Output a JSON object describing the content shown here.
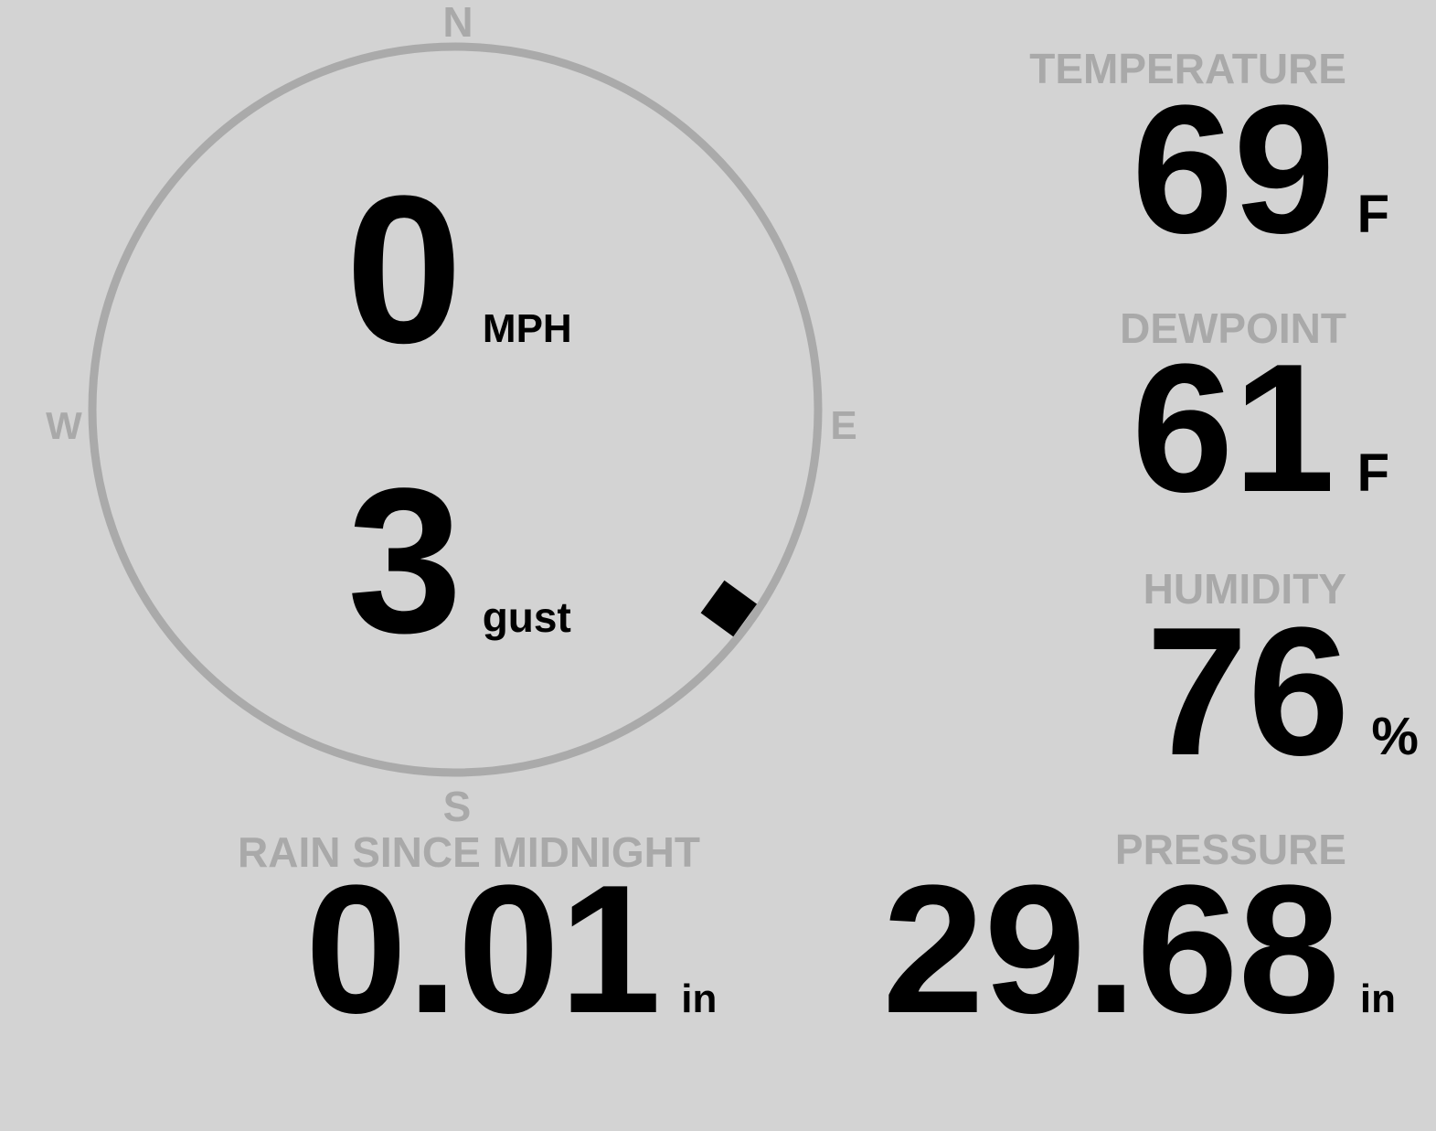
{
  "colors": {
    "background": "#d3d3d3",
    "label": "#a9a9a9",
    "value": "#000000"
  },
  "compass": {
    "n": "N",
    "e": "E",
    "s": "S",
    "w": "W"
  },
  "wind": {
    "speed": "0",
    "speed_unit": "MPH",
    "gust": "3",
    "gust_unit": "gust",
    "direction_deg": 126
  },
  "temperature": {
    "label": "TEMPERATURE",
    "value": "69",
    "unit": "F"
  },
  "dewpoint": {
    "label": "DEWPOINT",
    "value": "61",
    "unit": "F"
  },
  "humidity": {
    "label": "HUMIDITY",
    "value": "76",
    "unit": "%"
  },
  "pressure": {
    "label": "PRESSURE",
    "value": "29.68",
    "unit": "in"
  },
  "rain": {
    "label": "RAIN SINCE MIDNIGHT",
    "value": "0.01",
    "unit": "in"
  }
}
